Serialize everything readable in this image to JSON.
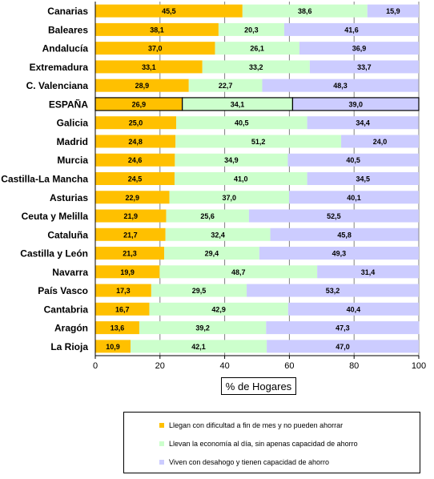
{
  "chart_data": {
    "type": "bar",
    "orientation": "horizontal",
    "stacked": true,
    "categories": [
      "Canarias",
      "Baleares",
      "Andalucía",
      "Extremadura",
      "C. Valenciana",
      "ESPAÑA",
      "Galicia",
      "Madrid",
      "Murcia",
      "Castilla-La Mancha",
      "Asturias",
      "Ceuta y Melilla",
      "Cataluña",
      "Castilla y León",
      "Navarra",
      "País Vasco",
      "Cantabria",
      "Aragón",
      "La Rioja"
    ],
    "highlight_category": "ESPAÑA",
    "series": [
      {
        "name": "Llegan con dificultad a fin de mes y no pueden ahorrar",
        "color": "#FFC000",
        "values": [
          45.5,
          38.1,
          37.0,
          33.1,
          28.9,
          26.9,
          25.0,
          24.8,
          24.6,
          24.5,
          22.9,
          21.9,
          21.7,
          21.3,
          19.9,
          17.3,
          16.7,
          13.6,
          10.9
        ],
        "labels": [
          "45,5",
          "38,1",
          "37,0",
          "33,1",
          "28,9",
          "26,9",
          "25,0",
          "24,8",
          "24,6",
          "24,5",
          "22,9",
          "21,9",
          "21,7",
          "21,3",
          "19,9",
          "17,3",
          "16,7",
          "13,6",
          "10,9"
        ]
      },
      {
        "name": "Llevan la economía al día, sin apenas capacidad de ahorro",
        "color": "#CCFFCC",
        "values": [
          38.6,
          20.3,
          26.1,
          33.2,
          22.7,
          34.1,
          40.5,
          51.2,
          34.9,
          41.0,
          37.0,
          25.6,
          32.4,
          29.4,
          48.7,
          29.5,
          42.9,
          39.2,
          42.1
        ],
        "labels": [
          "38,6",
          "20,3",
          "26,1",
          "33,2",
          "22,7",
          "34,1",
          "40,5",
          "51,2",
          "34,9",
          "41,0",
          "37,0",
          "25,6",
          "32,4",
          "29,4",
          "48,7",
          "29,5",
          "42,9",
          "39,2",
          "42,1"
        ]
      },
      {
        "name": "Viven con desahogo y tienen capacidad de ahorro",
        "color": "#CCCCFF",
        "values": [
          15.9,
          41.6,
          36.9,
          33.7,
          48.3,
          39.0,
          34.4,
          24.0,
          40.5,
          34.5,
          40.1,
          52.5,
          45.8,
          49.3,
          31.4,
          53.2,
          40.4,
          47.3,
          47.0
        ],
        "labels": [
          "15,9",
          "41,6",
          "36,9",
          "33,7",
          "48,3",
          "39,0",
          "34,4",
          "24,0",
          "40,5",
          "34,5",
          "40,1",
          "52,5",
          "45,8",
          "49,3",
          "31,4",
          "53,2",
          "40,4",
          "47,3",
          "47,0"
        ]
      }
    ],
    "xlim": [
      0,
      100
    ],
    "xticks": [
      0,
      20,
      40,
      60,
      80,
      100
    ],
    "xtick_labels": [
      "0",
      "20",
      "40",
      "60",
      "80",
      "100"
    ],
    "xlabel": "% de Hogares",
    "ylabel": "",
    "title": "",
    "grid": true,
    "legend_position": "bottom"
  }
}
